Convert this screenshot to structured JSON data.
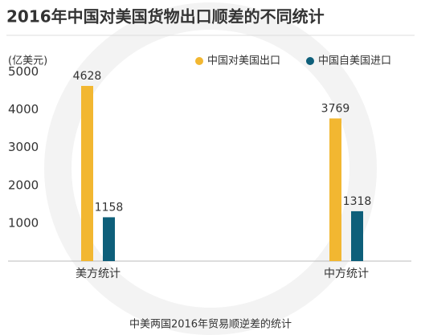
{
  "chart_data": {
    "type": "bar",
    "title": "2016年中国对美国货物出口顺差的不同统计",
    "unit_label": "(亿美元)",
    "caption": "中美两国2016年贸易顺逆差的统计",
    "categories": [
      "美方统计",
      "中方统计"
    ],
    "series": [
      {
        "name": "中国对美国出口",
        "color": "#f2b731",
        "values": [
          4628,
          3769
        ]
      },
      {
        "name": "中国自美国进口",
        "color": "#0e5f7a",
        "values": [
          1158,
          1318
        ]
      }
    ],
    "ylim": [
      0,
      5200
    ],
    "yticks": [
      1000,
      2000,
      3000,
      4000,
      5000
    ],
    "legend": "top-right",
    "data_labels": true
  }
}
